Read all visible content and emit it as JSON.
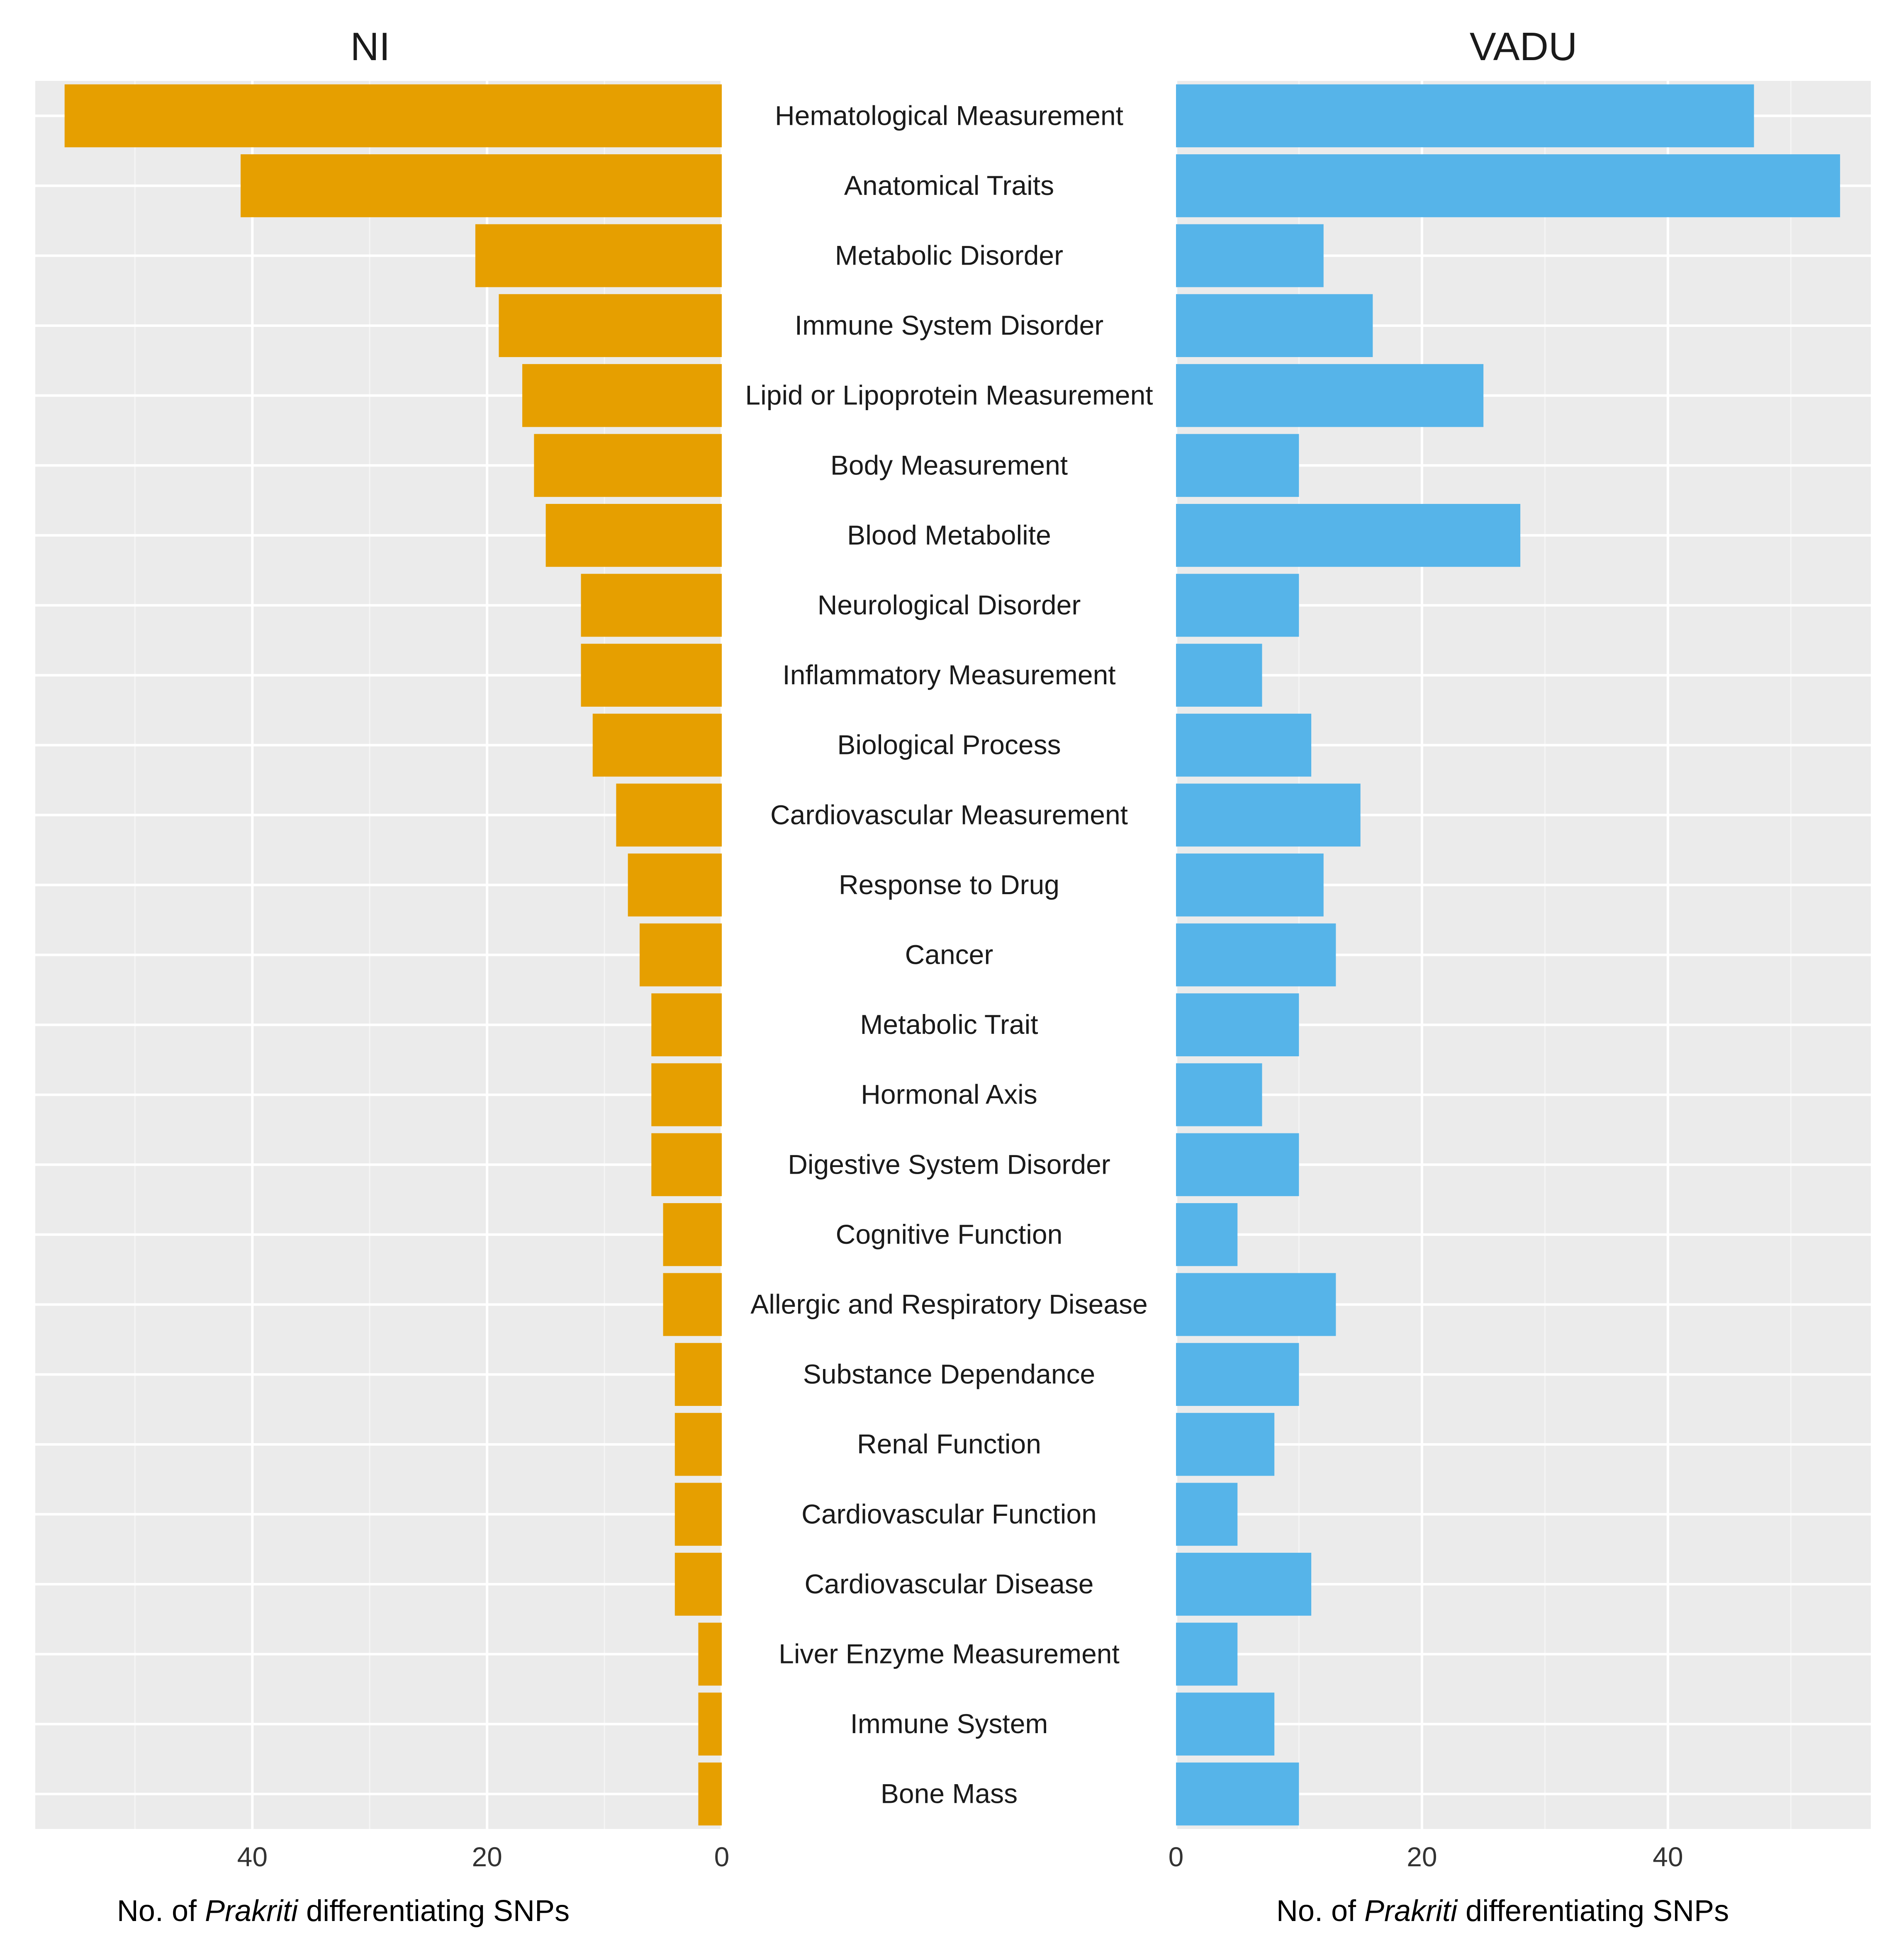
{
  "chart_data": {
    "type": "bar",
    "orientation": "horizontal",
    "layout": "back-to-back",
    "categories": [
      "Hematological Measurement",
      "Anatomical Traits",
      "Metabolic Disorder",
      "Immune System Disorder",
      "Lipid or Lipoprotein Measurement",
      "Body Measurement",
      "Blood Metabolite",
      "Neurological Disorder",
      "Inflammatory Measurement",
      "Biological Process",
      "Cardiovascular Measurement",
      "Response to Drug",
      "Cancer",
      "Metabolic Trait",
      "Hormonal Axis",
      "Digestive System Disorder",
      "Cognitive Function",
      "Allergic and Respiratory Disease",
      "Substance Dependance",
      "Renal Function",
      "Cardiovascular Function",
      "Cardiovascular Disease",
      "Liver Enzyme Measurement",
      "Immune System",
      "Bone Mass"
    ],
    "series": [
      {
        "name": "NI",
        "color": "#E69F00",
        "direction": "leftward",
        "values": [
          56,
          41,
          21,
          19,
          17,
          16,
          15,
          12,
          12,
          11,
          9,
          8,
          7,
          6,
          6,
          6,
          5,
          5,
          4,
          4,
          4,
          4,
          2,
          2,
          2
        ],
        "xlim": [
          0,
          58.5
        ],
        "xticks": [
          40,
          20,
          0
        ],
        "xlabel_prefix": "No. of ",
        "xlabel_italic": "Prakriti",
        "xlabel_suffix": " differentiating SNPs"
      },
      {
        "name": "VADU",
        "color": "#56B4E9",
        "direction": "rightward",
        "values": [
          47,
          54,
          12,
          16,
          25,
          10,
          28,
          10,
          7,
          11,
          15,
          12,
          13,
          10,
          7,
          10,
          5,
          13,
          10,
          8,
          5,
          11,
          5,
          8,
          10
        ],
        "xlim": [
          0,
          56.5
        ],
        "xticks": [
          0,
          20,
          40
        ],
        "xlabel_prefix": "No. of ",
        "xlabel_italic": "Prakriti",
        "xlabel_suffix": " differentiating SNPs"
      }
    ],
    "panel_background": "#EBEBEB",
    "grid": true,
    "legend": "none"
  }
}
